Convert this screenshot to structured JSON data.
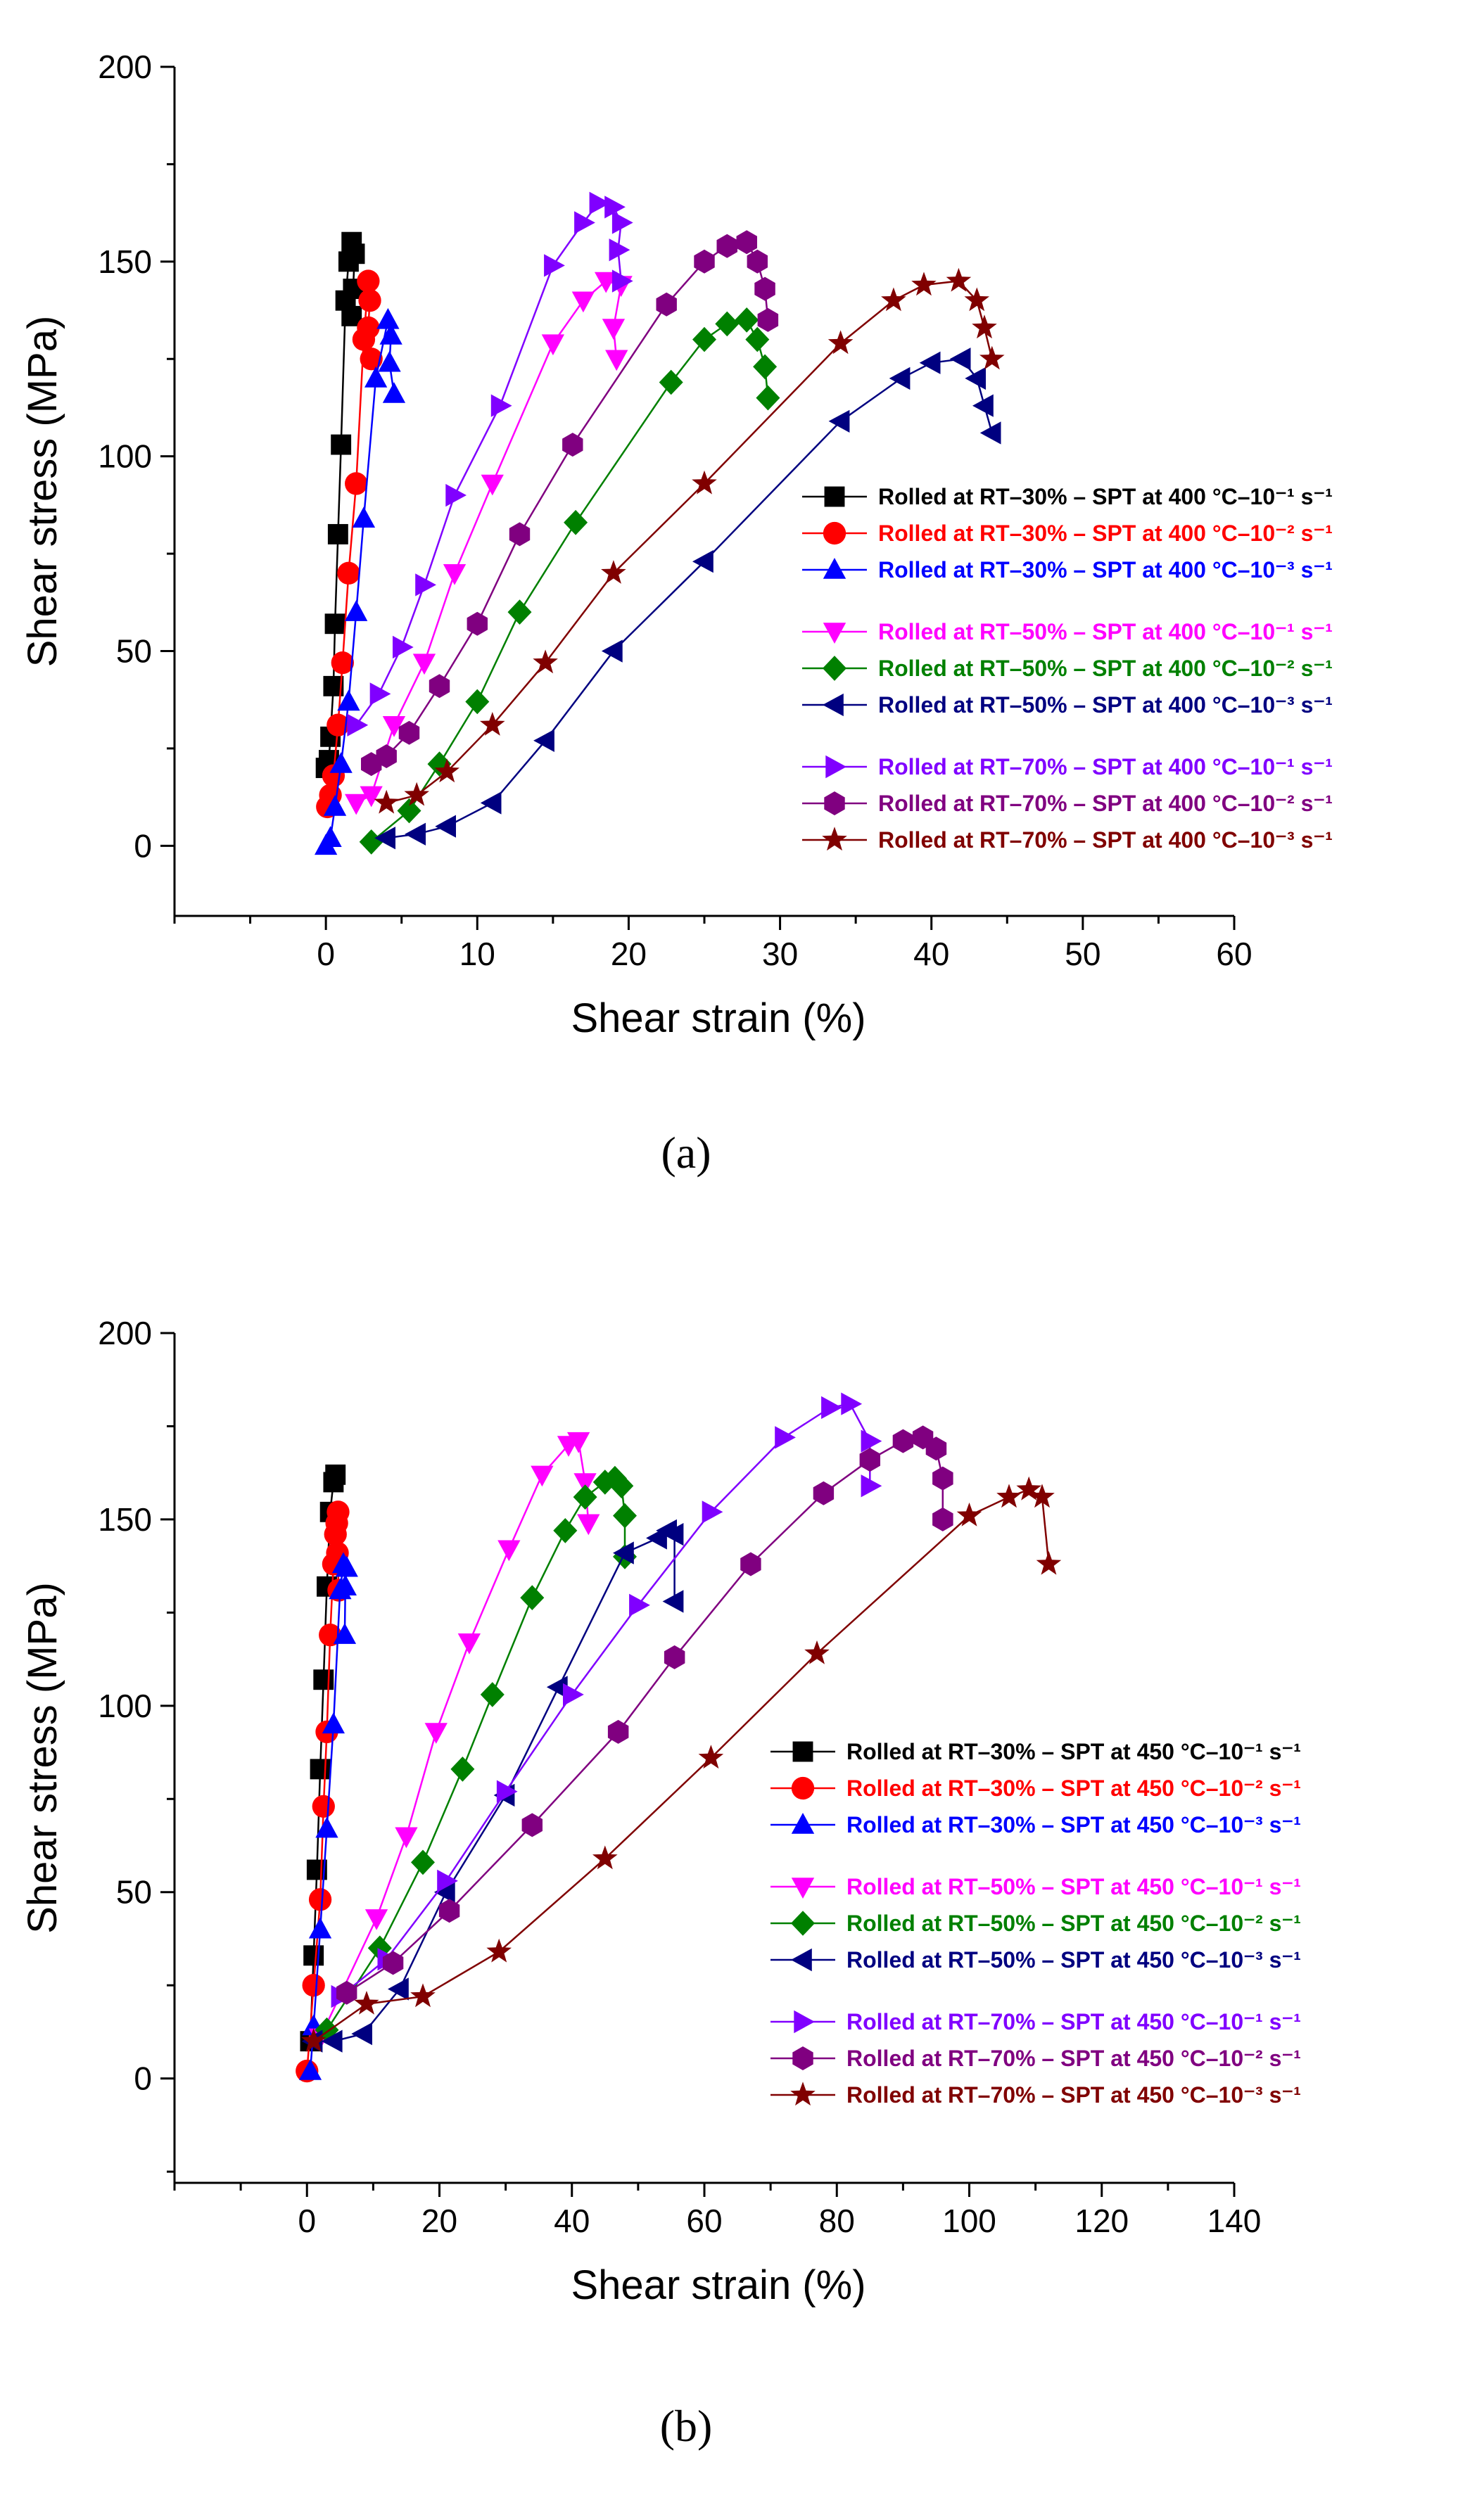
{
  "colors": {
    "black": "#000000",
    "red": "#ff0000",
    "blue": "#0000ff",
    "magenta": "#ff00ff",
    "green": "#008000",
    "navy": "#000080",
    "violet": "#8000ff",
    "purple": "#800080",
    "darkred": "#800000"
  },
  "chart_data": [
    {
      "type": "line",
      "panel_label": "(a)",
      "xlabel": "Shear strain (%)",
      "ylabel": "Shear stress (MPa)",
      "xlim": [
        -10,
        60
      ],
      "ylim": [
        -18,
        200
      ],
      "xticks": [
        0,
        10,
        20,
        30,
        40,
        50,
        60
      ],
      "yticks": [
        0,
        50,
        100,
        150,
        200
      ],
      "legend_position": "right",
      "series": [
        {
          "name": "Rolled at RT–30% – SPT at 400 °C–10⁻¹ s⁻¹",
          "color": "black",
          "marker": "square",
          "x": [
            0.0,
            0.2,
            0.3,
            0.5,
            0.6,
            0.8,
            1.0,
            1.3,
            1.5,
            1.7,
            1.9,
            1.8,
            1.7
          ],
          "y": [
            20,
            22,
            28,
            41,
            57,
            80,
            103,
            140,
            150,
            155,
            152,
            143,
            136
          ]
        },
        {
          "name": "Rolled at RT–30% – SPT at 400 °C–10⁻² s⁻¹",
          "color": "red",
          "marker": "circle",
          "x": [
            0.1,
            0.3,
            0.5,
            0.8,
            1.1,
            1.5,
            2.0,
            2.5,
            2.8,
            2.9,
            2.8,
            3.0
          ],
          "y": [
            10,
            13,
            18,
            31,
            47,
            70,
            93,
            130,
            145,
            140,
            133,
            125
          ]
        },
        {
          "name": "Rolled at RT–30% – SPT at 400 °C–10⁻³ s⁻¹",
          "color": "blue",
          "marker": "triangle-up",
          "x": [
            0.0,
            0.3,
            0.6,
            1.0,
            1.5,
            2.0,
            2.5,
            3.3,
            4.1,
            4.3,
            4.2,
            4.5
          ],
          "y": [
            0,
            2,
            10,
            21,
            37,
            60,
            84,
            120,
            135,
            131,
            124,
            116
          ]
        },
        {
          "name": "Rolled at RT–50% – SPT at 400 °C–10⁻¹ s⁻¹",
          "color": "magenta",
          "marker": "triangle-down",
          "x": [
            2.0,
            3.0,
            4.5,
            6.5,
            8.5,
            11.0,
            15.0,
            17.0,
            18.5,
            19.5,
            19.0,
            19.2
          ],
          "y": [
            11,
            13,
            31,
            47,
            70,
            93,
            129,
            140,
            145,
            144,
            133,
            125
          ]
        },
        {
          "name": "Rolled at RT–50% – SPT at 400 °C–10⁻² s⁻¹",
          "color": "green",
          "marker": "diamond",
          "x": [
            3.0,
            5.5,
            7.5,
            10.0,
            12.8,
            16.5,
            22.8,
            25.0,
            26.5,
            27.8,
            28.5,
            29.0,
            29.2
          ],
          "y": [
            1,
            9,
            21,
            37,
            60,
            83,
            119,
            130,
            134,
            135,
            130,
            123,
            115
          ]
        },
        {
          "name": "Rolled at RT–50% – SPT at 400 °C–10⁻³ s⁻¹",
          "color": "navy",
          "marker": "triangle-left",
          "x": [
            4.0,
            6.0,
            8.0,
            11.0,
            14.5,
            19.0,
            25.0,
            34.0,
            38.0,
            40.0,
            42.0,
            43.0,
            43.5,
            44.0
          ],
          "y": [
            2,
            3,
            5,
            11,
            27,
            50,
            73,
            109,
            120,
            124,
            125,
            120,
            113,
            106
          ]
        },
        {
          "name": "Rolled at RT–70% – SPT at 400 °C–10⁻¹ s⁻¹",
          "color": "violet",
          "marker": "triangle-right",
          "x": [
            2.0,
            3.5,
            5.0,
            6.5,
            8.5,
            11.5,
            15.0,
            17.0,
            18.0,
            19.0,
            19.5,
            19.3,
            19.5
          ],
          "y": [
            31,
            39,
            51,
            67,
            90,
            113,
            149,
            160,
            165,
            164,
            160,
            153,
            145
          ]
        },
        {
          "name": "Rolled at RT–70% – SPT at 400 °C–10⁻² s⁻¹",
          "color": "purple",
          "marker": "hexagon",
          "x": [
            3.0,
            4.0,
            5.5,
            7.5,
            10.0,
            12.8,
            16.3,
            22.5,
            25.0,
            26.5,
            27.8,
            28.5,
            29.0,
            29.2
          ],
          "y": [
            21,
            23,
            29,
            41,
            57,
            80,
            103,
            139,
            150,
            154,
            155,
            150,
            143,
            135
          ]
        },
        {
          "name": "Rolled at RT–70% – SPT at 400 °C–10⁻³ s⁻¹",
          "color": "darkred",
          "marker": "star",
          "x": [
            4.0,
            6.0,
            8.0,
            11.0,
            14.5,
            19.0,
            25.0,
            34.0,
            37.5,
            39.5,
            41.8,
            43.0,
            43.5,
            44.0
          ],
          "y": [
            11,
            13,
            19,
            31,
            47,
            70,
            93,
            129,
            140,
            144,
            145,
            140,
            133,
            125
          ]
        }
      ]
    },
    {
      "type": "line",
      "panel_label": "(b)",
      "xlabel": "Shear strain (%)",
      "ylabel": "Shear stress (MPa)",
      "xlim": [
        -20,
        140
      ],
      "ylim": [
        -28,
        200
      ],
      "xticks": [
        0,
        20,
        40,
        60,
        80,
        100,
        120,
        140
      ],
      "yticks": [
        0,
        50,
        100,
        150,
        200
      ],
      "legend_position": "right",
      "series": [
        {
          "name": "Rolled at RT–30% – SPT at 450 °C–10⁻¹ s⁻¹",
          "color": "black",
          "marker": "square",
          "x": [
            0.5,
            1.0,
            1.5,
            2.0,
            2.5,
            3.0,
            3.5,
            4.0,
            4.3
          ],
          "y": [
            10,
            33,
            56,
            83,
            107,
            132,
            152,
            160,
            162
          ]
        },
        {
          "name": "Rolled at RT–30% – SPT at 450 °C–10⁻² s⁻¹",
          "color": "red",
          "marker": "circle",
          "x": [
            0.0,
            1.0,
            2.0,
            2.5,
            3.0,
            3.5,
            4.0,
            4.3,
            4.5,
            4.7,
            4.6,
            4.8
          ],
          "y": [
            2,
            25,
            48,
            73,
            93,
            119,
            138,
            146,
            149,
            152,
            141,
            131
          ]
        },
        {
          "name": "Rolled at RT–30% – SPT at 450 °C–10⁻³ s⁻¹",
          "color": "blue",
          "marker": "triangle-up",
          "x": [
            0.5,
            1.0,
            2.0,
            3.0,
            4.0,
            5.0,
            5.5,
            6.0,
            5.8,
            5.7
          ],
          "y": [
            2,
            14,
            40,
            67,
            95,
            131,
            138,
            137,
            132,
            119
          ]
        },
        {
          "name": "Rolled at RT–50% – SPT at 450 °C–10⁻¹ s⁻¹",
          "color": "magenta",
          "marker": "triangle-down",
          "x": [
            2.0,
            10.5,
            15.0,
            19.5,
            24.5,
            30.5,
            35.5,
            39.5,
            41.0,
            42.0,
            42.5
          ],
          "y": [
            11,
            43,
            65,
            93,
            117,
            142,
            162,
            170,
            171,
            160,
            149
          ]
        },
        {
          "name": "Rolled at RT–50% – SPT at 450 °C–10⁻² s⁻¹",
          "color": "green",
          "marker": "diamond",
          "x": [
            3.0,
            11.0,
            17.5,
            23.5,
            28.0,
            34.0,
            39.0,
            42.0,
            45.0,
            46.5,
            47.5,
            48.0,
            48.0
          ],
          "y": [
            13,
            35,
            58,
            83,
            103,
            129,
            147,
            156,
            160,
            161,
            159,
            151,
            140
          ]
        },
        {
          "name": "Rolled at RT–50% – SPT at 450 °C–10⁻³ s⁻¹",
          "color": "navy",
          "marker": "triangle-left",
          "x": [
            1.0,
            4.0,
            8.5,
            14.0,
            21.0,
            30.0,
            38.0,
            48.0,
            53.0,
            54.5,
            55.5,
            55.5
          ],
          "y": [
            10,
            10,
            12,
            24,
            50,
            76,
            105,
            141,
            145,
            147,
            146,
            128
          ]
        },
        {
          "name": "Rolled at RT–70% – SPT at 450 °C–10⁻¹ s⁻¹",
          "color": "violet",
          "marker": "triangle-right",
          "x": [
            5.0,
            12.0,
            21.0,
            30.0,
            40.0,
            50.0,
            61.0,
            72.0,
            79.0,
            82.0,
            85.0,
            85.0
          ],
          "y": [
            22,
            32,
            53,
            77,
            103,
            127,
            152,
            172,
            180,
            181,
            171,
            159
          ]
        },
        {
          "name": "Rolled at RT–70% – SPT at 450 °C–10⁻² s⁻¹",
          "color": "purple",
          "marker": "hexagon",
          "x": [
            6.0,
            13.0,
            21.5,
            34.0,
            47.0,
            55.5,
            67.0,
            78.0,
            85.0,
            90.0,
            93.0,
            95.0,
            96.0,
            96.0
          ],
          "y": [
            23,
            31,
            45,
            68,
            93,
            113,
            138,
            157,
            166,
            171,
            172,
            169,
            161,
            150
          ]
        },
        {
          "name": "Rolled at RT–70% – SPT at 450 °C–10⁻³ s⁻¹",
          "color": "darkred",
          "marker": "star",
          "x": [
            1.0,
            9.0,
            17.5,
            29.0,
            45.0,
            61.0,
            77.0,
            100.0,
            106.0,
            109.0,
            111.0,
            112.0
          ],
          "y": [
            10,
            20,
            22,
            34,
            59,
            86,
            114,
            151,
            156,
            158,
            156,
            138
          ]
        }
      ]
    }
  ]
}
